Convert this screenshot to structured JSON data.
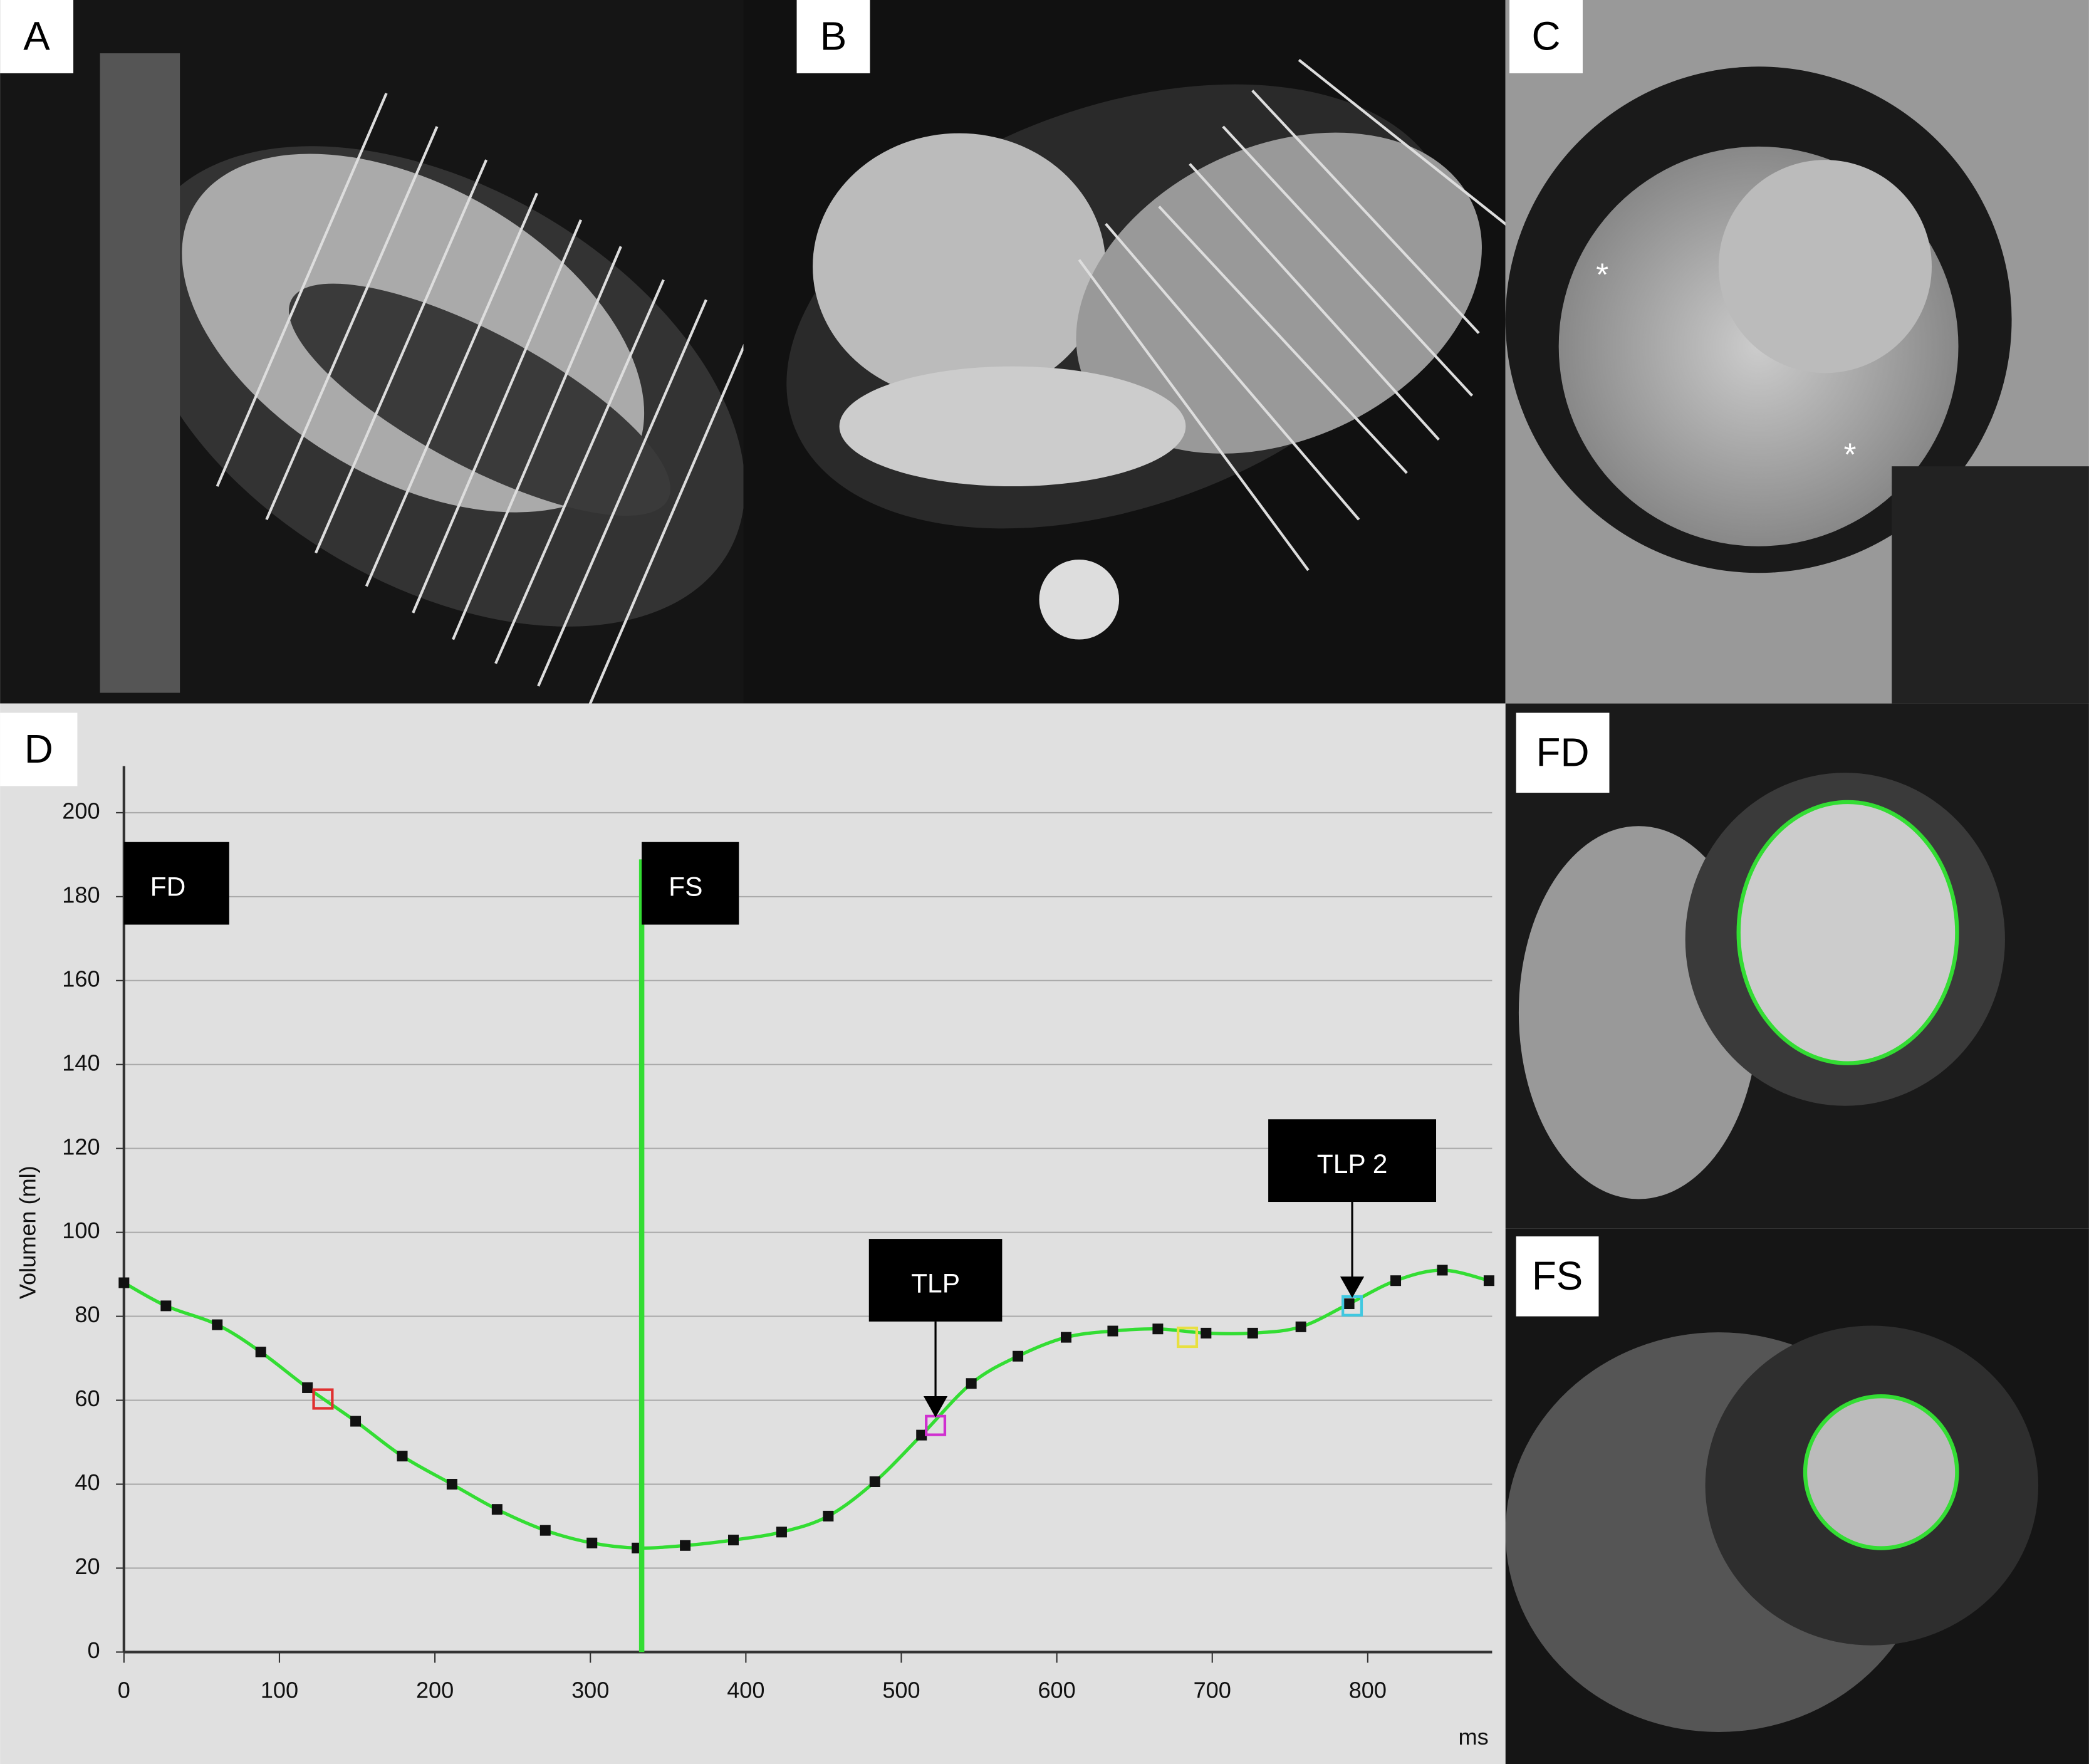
{
  "panels": [
    {
      "label": "A"
    },
    {
      "label": "B"
    },
    {
      "label": "C"
    },
    {
      "label": "D"
    },
    {
      "label": "FD"
    },
    {
      "label": "FS"
    }
  ],
  "chart_data": {
    "type": "line",
    "y_label": "Volumen (ml)",
    "x_label": "ms",
    "color": "#33dd33",
    "x": [
      0,
      27,
      60,
      88,
      118,
      149,
      179,
      211,
      240,
      271,
      301,
      330,
      361,
      392,
      423,
      453,
      483,
      513,
      545,
      575,
      606,
      636,
      665,
      696,
      726,
      757,
      788,
      818,
      848,
      878
    ],
    "values": [
      88,
      82.5,
      78,
      71.5,
      63,
      55,
      46.7,
      40,
      34,
      29,
      26,
      24.8,
      25.4,
      26.7,
      28.6,
      32.4,
      40.6,
      51.7,
      64,
      70.5,
      75,
      76.5,
      77,
      76,
      76,
      77.5,
      83,
      88.5,
      91,
      88.5
    ],
    "xlim": [
      0,
      880
    ],
    "ylim": [
      0,
      200
    ],
    "xticks": [
      0,
      100,
      200,
      300,
      400,
      500,
      600,
      700,
      800
    ],
    "yticks": [
      0,
      20,
      40,
      60,
      80,
      100,
      120,
      140,
      160,
      180,
      200
    ],
    "grid": true,
    "highlights": [
      {
        "x": 128,
        "y": 60.3,
        "color": "#e03030"
      },
      {
        "x": 522,
        "y": 54,
        "color": "#d030d0"
      },
      {
        "x": 684,
        "y": 75,
        "color": "#e8e040"
      },
      {
        "x": 790,
        "y": 82.5,
        "color": "#40c8e0"
      }
    ],
    "annotations": [
      {
        "text": "FD",
        "x": 0
      },
      {
        "text": "FS",
        "x": 333
      },
      {
        "text": "TLP",
        "x": 522,
        "y": 54
      },
      {
        "text": "TLP 2",
        "x": 790,
        "y": 82.5
      }
    ]
  }
}
